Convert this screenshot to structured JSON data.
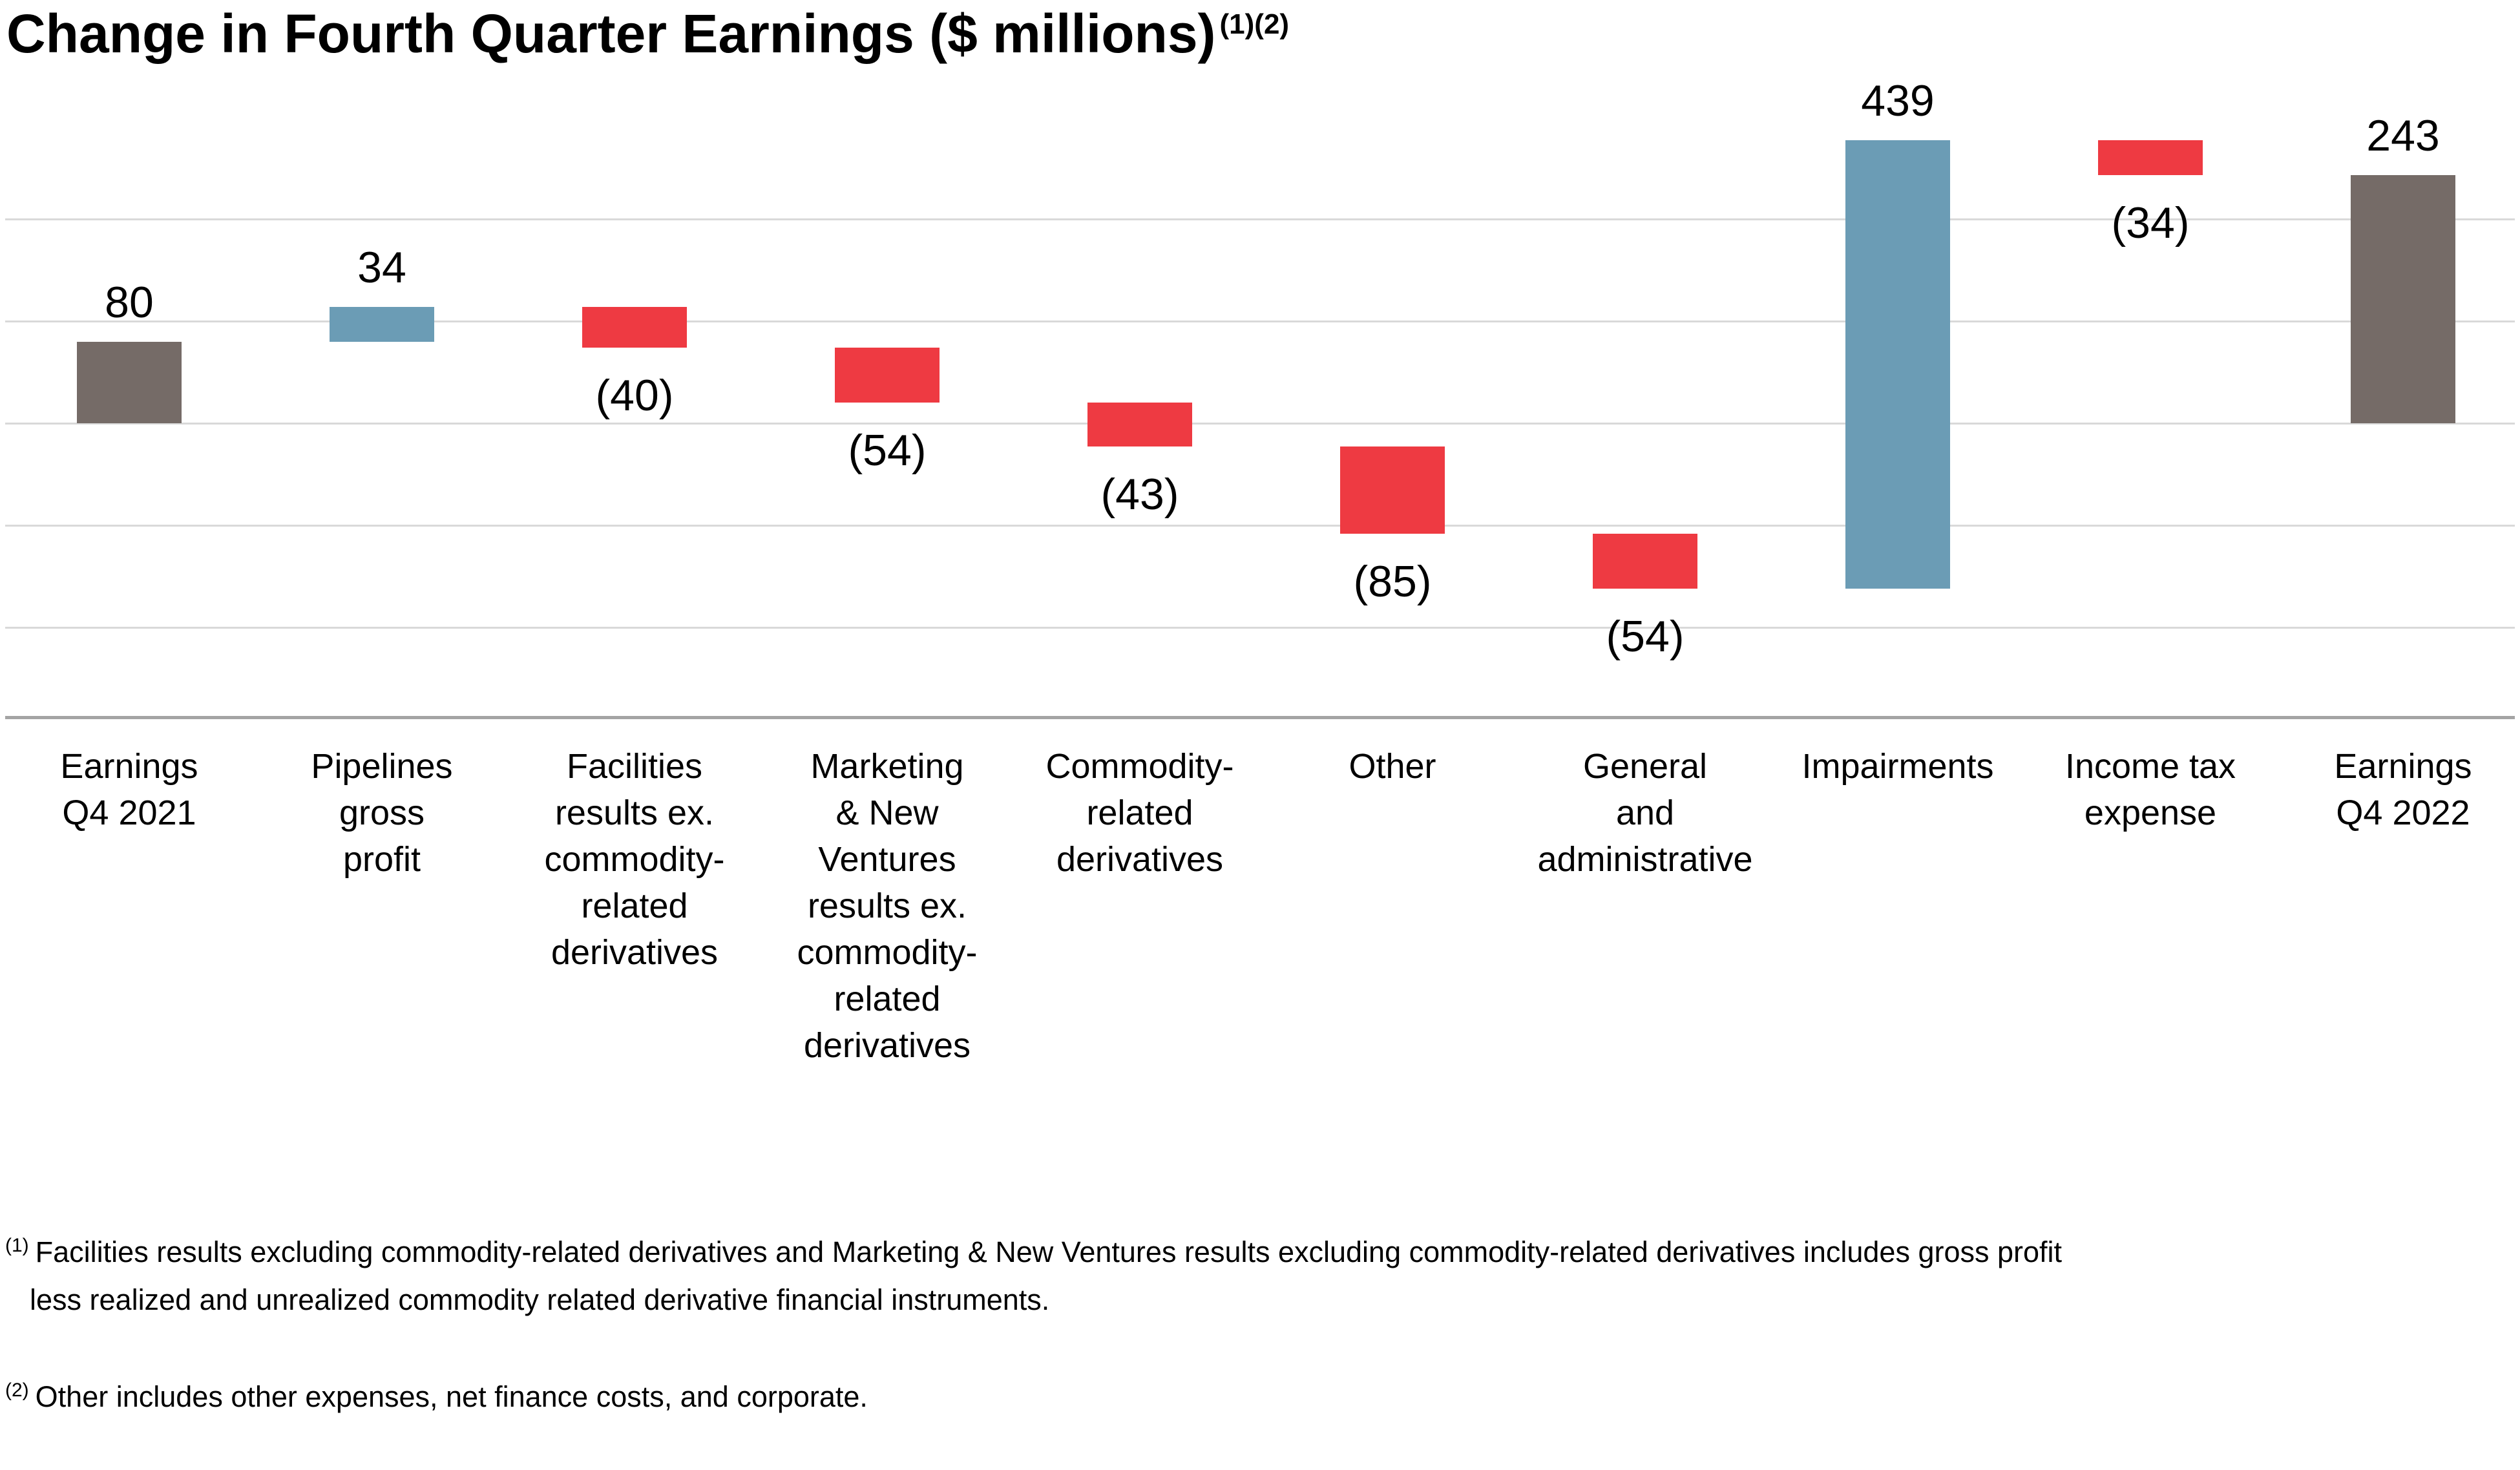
{
  "title": {
    "text": "Change in Fourth Quarter Earnings ($ millions)",
    "superscript": "(1)(2)"
  },
  "chart_data": {
    "type": "bar",
    "subtype": "waterfall",
    "title": "Change in Fourth Quarter Earnings ($ millions)",
    "unit": "$ millions",
    "legend": "none",
    "grid": "horizontal",
    "ylim": [
      -290,
      330
    ],
    "gridlines": {
      "values": [
        200,
        100,
        0,
        -100,
        -200
      ],
      "color": "#d9d9d9"
    },
    "axis": {
      "color": "#a4a4a4"
    },
    "colors": {
      "total": "#756b67",
      "increase": "#6b9cb5",
      "decrease": "#ee3a42"
    },
    "items": [
      {
        "category": "Earnings\nQ4 2021",
        "value": 80,
        "label": "80",
        "role": "total"
      },
      {
        "category": "Pipelines\ngross\nprofit",
        "value": 34,
        "label": "34",
        "role": "increase"
      },
      {
        "category": "Facilities\nresults ex.\ncommodity-\nrelated\nderivatives",
        "value": -40,
        "label": "(40)",
        "role": "decrease"
      },
      {
        "category": "Marketing\n& New\nVentures\nresults ex.\ncommodity-\nrelated\nderivatives",
        "value": -54,
        "label": "(54)",
        "role": "decrease"
      },
      {
        "category": "Commodity-\nrelated\nderivatives",
        "value": -43,
        "label": "(43)",
        "role": "decrease"
      },
      {
        "category": "Other",
        "value": -85,
        "label": "(85)",
        "role": "decrease"
      },
      {
        "category": "General\nand\nadministrative",
        "value": -54,
        "label": "(54)",
        "role": "decrease"
      },
      {
        "category": "Impairments",
        "value": 439,
        "label": "439",
        "role": "increase"
      },
      {
        "category": "Income tax\nexpense",
        "value": -34,
        "label": "(34)",
        "role": "decrease"
      },
      {
        "category": "Earnings\nQ4 2022",
        "value": 243,
        "label": "243",
        "role": "total"
      }
    ]
  },
  "footnotes": [
    {
      "marker": "(1)",
      "line1": "Facilities results excluding commodity-related derivatives and Marketing & New Ventures results excluding commodity-related derivatives includes gross profit",
      "line2": "less realized and unrealized commodity related derivative financial instruments."
    },
    {
      "marker": "(2)",
      "line1": "Other includes other expenses, net finance costs, and corporate."
    }
  ]
}
